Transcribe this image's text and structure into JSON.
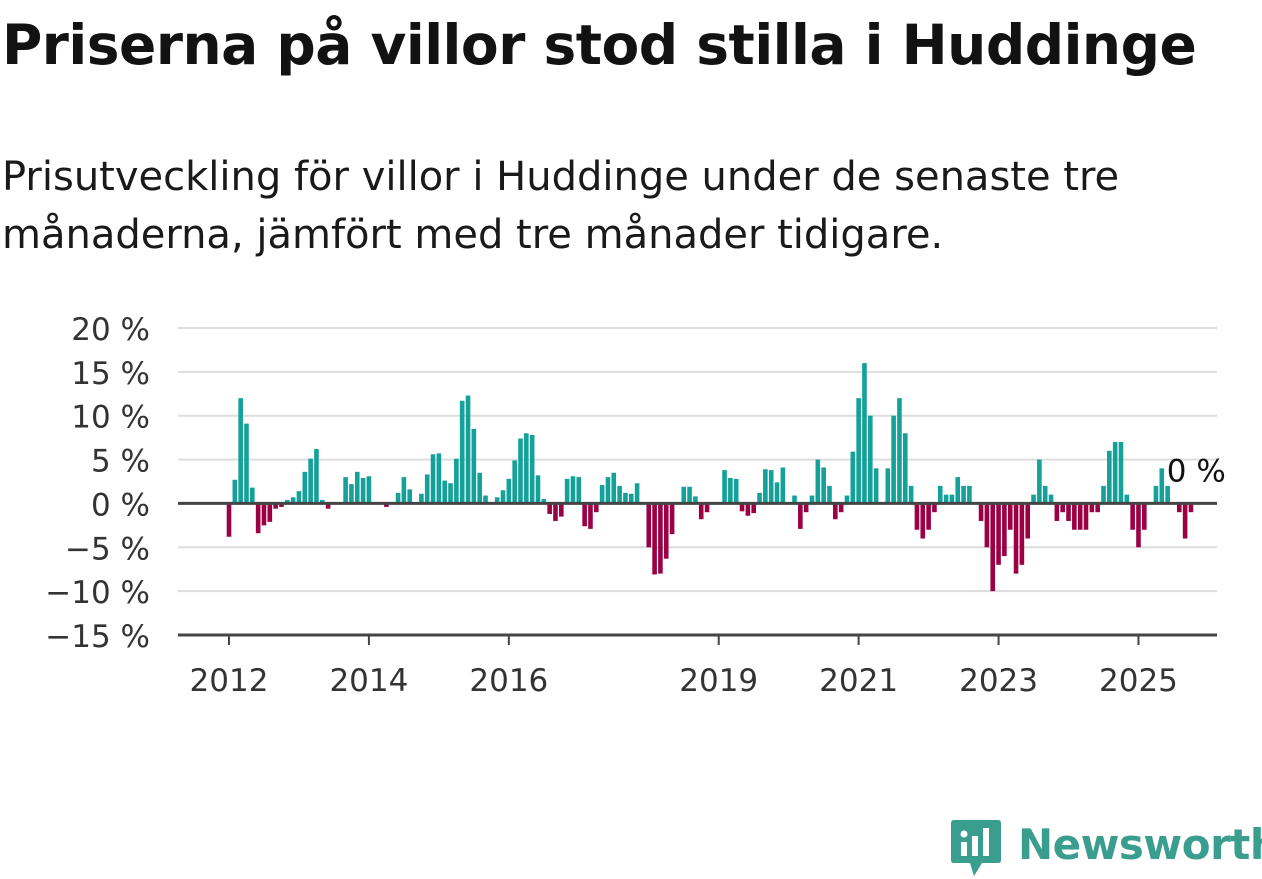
{
  "title": "Priserna på villor stod stilla i Huddinge",
  "subtitle": "Prisutveckling för villor i Huddinge under de senaste tre månaderna, jämfört med tre månader tidigare.",
  "logo": {
    "text": "Newsworthy",
    "icon": "newsworthy-chart-icon"
  },
  "colors": {
    "positive": "#13a19a",
    "negative": "#9b0045",
    "zero_line": "#444444",
    "grid": "#dddddd",
    "logo": "#3a9e8f"
  },
  "chart_data": {
    "type": "bar",
    "ylim": [
      -15,
      20
    ],
    "yticks": [
      -15,
      -10,
      -5,
      0,
      5,
      10,
      15,
      20
    ],
    "ytick_labels": [
      "−15 %",
      "−10 %",
      "−5 %",
      "0 %",
      "5 %",
      "10 %",
      "15 %",
      "20 %"
    ],
    "xtick_labels": [
      "2012",
      "2014",
      "2016",
      "2019",
      "2021",
      "2023",
      "2025"
    ],
    "xtick_positions": [
      2012,
      2014,
      2016,
      2019,
      2021,
      2023,
      2025
    ],
    "grid": true,
    "last_value_label": "0 %",
    "x_start": "2012-01",
    "frequency": "monthly",
    "values": [
      -3.8,
      2.7,
      12.0,
      9.1,
      1.8,
      -3.4,
      -2.5,
      -2.1,
      -0.6,
      -0.4,
      0.4,
      0.7,
      1.4,
      3.6,
      5.1,
      6.2,
      0.4,
      -0.6,
      0,
      0,
      3.0,
      2.2,
      3.6,
      2.9,
      3.1,
      0,
      0,
      -0.4,
      0,
      1.2,
      3.0,
      1.6,
      0,
      1.1,
      3.3,
      5.6,
      5.7,
      2.6,
      2.3,
      5.1,
      11.7,
      12.3,
      8.5,
      3.5,
      0.9,
      0,
      0.7,
      1.5,
      2.8,
      4.9,
      7.4,
      8.0,
      7.8,
      3.2,
      0.5,
      -1.2,
      -2.0,
      -1.5,
      2.8,
      3.1,
      3.0,
      -2.6,
      -2.9,
      -1.0,
      2.1,
      3.0,
      3.5,
      2.0,
      1.2,
      1.1,
      2.3,
      0,
      -5.0,
      -8.1,
      -8.0,
      -6.3,
      -3.5,
      0,
      1.9,
      1.9,
      0.8,
      -1.8,
      -1.0,
      0,
      0,
      3.8,
      2.9,
      2.8,
      -0.9,
      -1.4,
      -1.1,
      1.2,
      3.9,
      3.8,
      2.4,
      4.1,
      0,
      0.9,
      -2.9,
      -1.0,
      0.9,
      5.0,
      4.1,
      2.0,
      -1.8,
      -1.0,
      0.9,
      5.9,
      12.0,
      16.0,
      10.0,
      4.0,
      0,
      4.0,
      10.0,
      12.0,
      8.0,
      2.0,
      -3.0,
      -4.0,
      -3.0,
      -1.0,
      2.0,
      1.0,
      1.0,
      3.0,
      2.0,
      2.0,
      0,
      -2.0,
      -5.0,
      -10.0,
      -7.0,
      -6.0,
      -3.0,
      -8.0,
      -7.0,
      -4.0,
      1.0,
      5.0,
      2.0,
      1.0,
      -2.0,
      -1.0,
      -2.0,
      -3.0,
      -3.0,
      -3.0,
      -1.0,
      -1.0,
      2.0,
      6.0,
      7.0,
      7.0,
      1.0,
      -3.0,
      -5.0,
      -3.0,
      0,
      2.0,
      4.0,
      2.0,
      0,
      -1.0,
      -4.0,
      -1.0,
      0
    ]
  }
}
